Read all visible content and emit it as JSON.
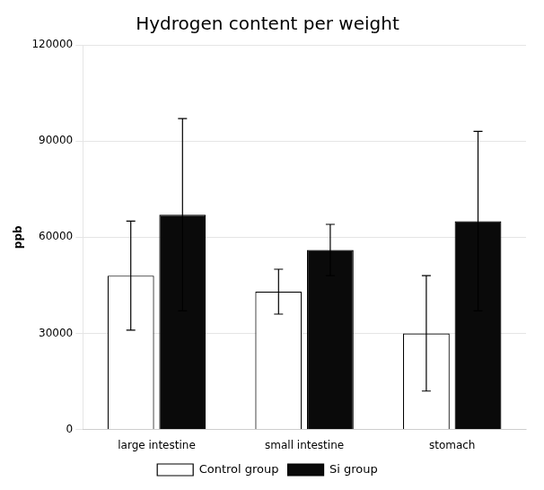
{
  "chart_data": {
    "type": "bar",
    "title": "Hydrogen content per weight",
    "categories": [
      "large intestine",
      "small intestine",
      "stomach"
    ],
    "series": [
      {
        "name": "Control group",
        "color": "#ffffff",
        "values": [
          48000,
          43000,
          30000
        ],
        "errors": [
          17000,
          7000,
          18000
        ]
      },
      {
        "name": "Si group",
        "color": "#0a0a0a",
        "values": [
          67000,
          56000,
          65000
        ],
        "errors": [
          30000,
          8000,
          28000
        ]
      }
    ],
    "ylabel": "ppb",
    "ylim": [
      0,
      120000
    ],
    "yticks": [
      0,
      30000,
      60000,
      90000,
      120000
    ],
    "grid": true,
    "legend": "bottom"
  }
}
